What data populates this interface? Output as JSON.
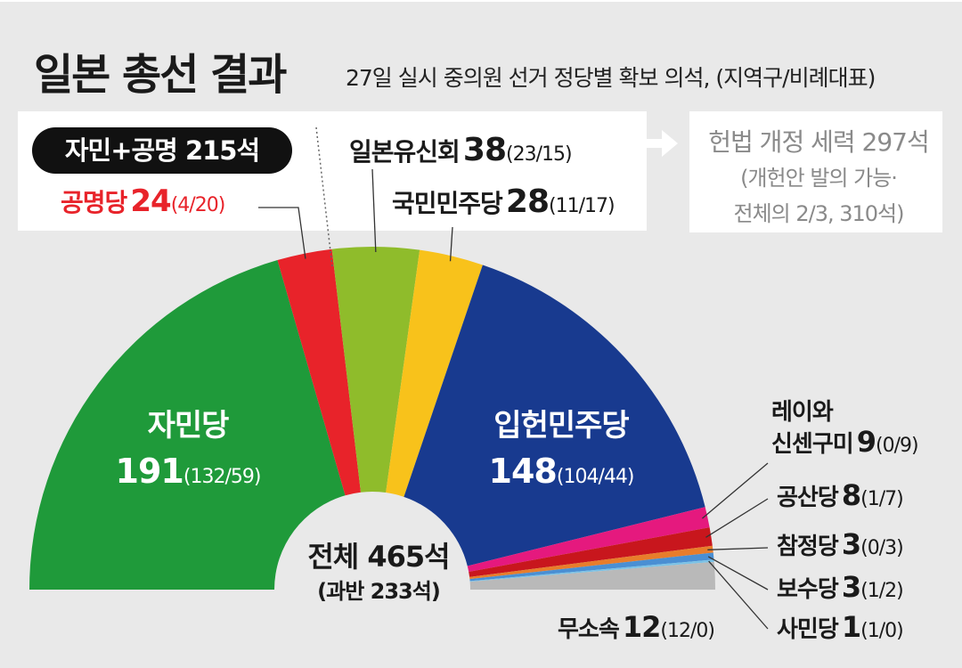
{
  "title": "일본 총선 결과",
  "subtitle": "27일 실시 중의원 선거 정당별 확보 의석, (지역구/비례대표)",
  "coalition": {
    "label": "자민+공명 215석"
  },
  "amendment": {
    "head": "헌법 개정 세력 297석",
    "line1": "(개헌안 발의 가능·",
    "line2": "전체의 2/3, 310석)"
  },
  "center": {
    "total": "전체 465석",
    "majority": "(과반 233석)"
  },
  "colors": {
    "ldp": "#1f9a3a",
    "komeito": "#e8232a",
    "ishin": "#8fbc2b",
    "dpfp": "#f8c21b",
    "cdp": "#183a8f",
    "reiwa": "#e5197e",
    "jcp": "#c8161d",
    "sanseito": "#e87d2b",
    "conservative": "#4a8fd3",
    "sdp": "#7bc2e6",
    "independent": "#b9b9b9"
  },
  "chart_data": {
    "type": "pie",
    "subtype": "semicircle-parliament",
    "total": 465,
    "majority": 233,
    "parties": [
      {
        "name": "자민당",
        "seats": 191,
        "district": 132,
        "pr": 59,
        "detail": "(132/59)",
        "color": "#1f9a3a"
      },
      {
        "name": "공명당",
        "seats": 24,
        "district": 4,
        "pr": 20,
        "detail": "(4/20)",
        "color": "#e8232a"
      },
      {
        "name": "일본유신회",
        "seats": 38,
        "district": 23,
        "pr": 15,
        "detail": "(23/15)",
        "color": "#8fbc2b"
      },
      {
        "name": "국민민주당",
        "seats": 28,
        "district": 11,
        "pr": 17,
        "detail": "(11/17)",
        "color": "#f8c21b"
      },
      {
        "name": "입헌민주당",
        "seats": 148,
        "district": 104,
        "pr": 44,
        "detail": "(104/44)",
        "color": "#183a8f"
      },
      {
        "name": "레이와 신센구미",
        "name_line1": "레이와",
        "name_line2": "신센구미",
        "seats": 9,
        "district": 0,
        "pr": 9,
        "detail": "(0/9)",
        "color": "#e5197e"
      },
      {
        "name": "공산당",
        "seats": 8,
        "district": 1,
        "pr": 7,
        "detail": "(1/7)",
        "color": "#c8161d"
      },
      {
        "name": "참정당",
        "seats": 3,
        "district": 0,
        "pr": 3,
        "detail": "(0/3)",
        "color": "#e87d2b"
      },
      {
        "name": "보수당",
        "seats": 3,
        "district": 1,
        "pr": 2,
        "detail": "(1/2)",
        "color": "#4a8fd3"
      },
      {
        "name": "사민당",
        "seats": 1,
        "district": 1,
        "pr": 0,
        "detail": "(1/0)",
        "color": "#7bc2e6"
      },
      {
        "name": "무소속",
        "seats": 12,
        "district": 12,
        "pr": 0,
        "detail": "(12/0)",
        "color": "#b9b9b9"
      }
    ]
  }
}
